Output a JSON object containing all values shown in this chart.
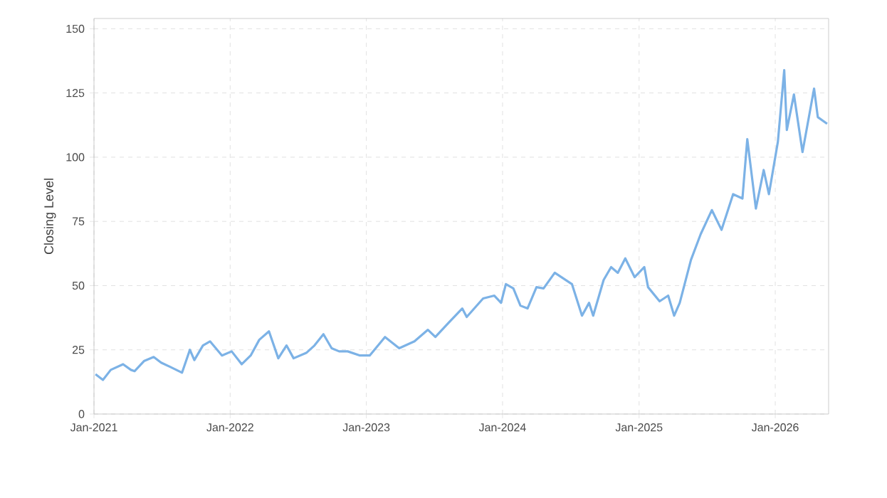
{
  "chart_data": {
    "type": "line",
    "ylabel": "Closing Level",
    "color": "#7cb2e6",
    "grid": true,
    "line_style": "solid",
    "xlim": [
      "2021-01-01",
      "2026-05-24"
    ],
    "ylim": [
      0,
      154
    ],
    "xticks": [
      {
        "value": "2021-01-01",
        "label": "Jan-2021"
      },
      {
        "value": "2022-01-01",
        "label": "Jan-2022"
      },
      {
        "value": "2023-01-01",
        "label": "Jan-2023"
      },
      {
        "value": "2024-01-01",
        "label": "Jan-2024"
      },
      {
        "value": "2025-01-01",
        "label": "Jan-2025"
      },
      {
        "value": "2026-01-01",
        "label": "Jan-2026"
      }
    ],
    "yticks": [
      0,
      25,
      50,
      75,
      100,
      125,
      150
    ],
    "x": [
      "2021-01-05",
      "2021-01-25",
      "2021-02-15",
      "2021-03-20",
      "2021-04-10",
      "2021-04-20",
      "2021-05-15",
      "2021-06-10",
      "2021-06-30",
      "2021-07-25",
      "2021-08-25",
      "2021-09-15",
      "2021-09-27",
      "2021-10-20",
      "2021-11-08",
      "2021-12-10",
      "2022-01-05",
      "2022-02-01",
      "2022-02-25",
      "2022-03-20",
      "2022-04-15",
      "2022-05-10",
      "2022-06-01",
      "2022-06-20",
      "2022-07-25",
      "2022-08-15",
      "2022-09-08",
      "2022-09-30",
      "2022-10-20",
      "2022-11-12",
      "2022-12-15",
      "2023-01-10",
      "2023-02-20",
      "2023-03-30",
      "2023-05-10",
      "2023-06-15",
      "2023-07-05",
      "2023-08-10",
      "2023-09-15",
      "2023-09-27",
      "2023-11-10",
      "2023-12-10",
      "2023-12-28",
      "2024-01-10",
      "2024-01-30",
      "2024-02-18",
      "2024-03-08",
      "2024-04-01",
      "2024-04-20",
      "2024-05-20",
      "2024-07-05",
      "2024-08-01",
      "2024-08-20",
      "2024-08-31",
      "2024-09-28",
      "2024-10-18",
      "2024-11-05",
      "2024-11-25",
      "2024-12-20",
      "2025-01-15",
      "2025-01-25",
      "2025-02-25",
      "2025-03-20",
      "2025-04-05",
      "2025-04-20",
      "2025-05-20",
      "2025-06-15",
      "2025-07-15",
      "2025-08-10",
      "2025-09-10",
      "2025-10-05",
      "2025-10-18",
      "2025-11-10",
      "2025-12-01",
      "2025-12-15",
      "2026-01-08",
      "2026-01-25",
      "2026-02-01",
      "2026-02-20",
      "2026-03-15",
      "2026-04-15",
      "2026-04-25",
      "2026-05-20"
    ],
    "values": [
      15.5,
      13.3,
      17.2,
      19.4,
      17.2,
      16.7,
      20.6,
      22.2,
      20,
      18.3,
      16.1,
      25,
      21,
      26.7,
      28.3,
      22.8,
      24.4,
      19.4,
      22.8,
      28.9,
      32.2,
      21.7,
      26.7,
      21.7,
      23.9,
      26.7,
      31.1,
      25.6,
      24.4,
      24.4,
      22.8,
      22.8,
      30,
      25.6,
      28.3,
      32.8,
      30,
      35.6,
      41.1,
      37.8,
      45,
      46.1,
      43.3,
      50.6,
      48.9,
      42.2,
      41.1,
      49.4,
      48.9,
      55,
      50.6,
      38.3,
      43.3,
      38.3,
      52.2,
      57.2,
      55,
      60.6,
      53.3,
      57.2,
      49.4,
      43.9,
      46.1,
      38.3,
      43.3,
      60,
      70,
      79.4,
      71.7,
      85.6,
      83.9,
      107,
      80,
      95,
      85.6,
      106,
      133.9,
      110.6,
      124.4,
      102,
      126.7,
      115.6,
      113
    ]
  }
}
